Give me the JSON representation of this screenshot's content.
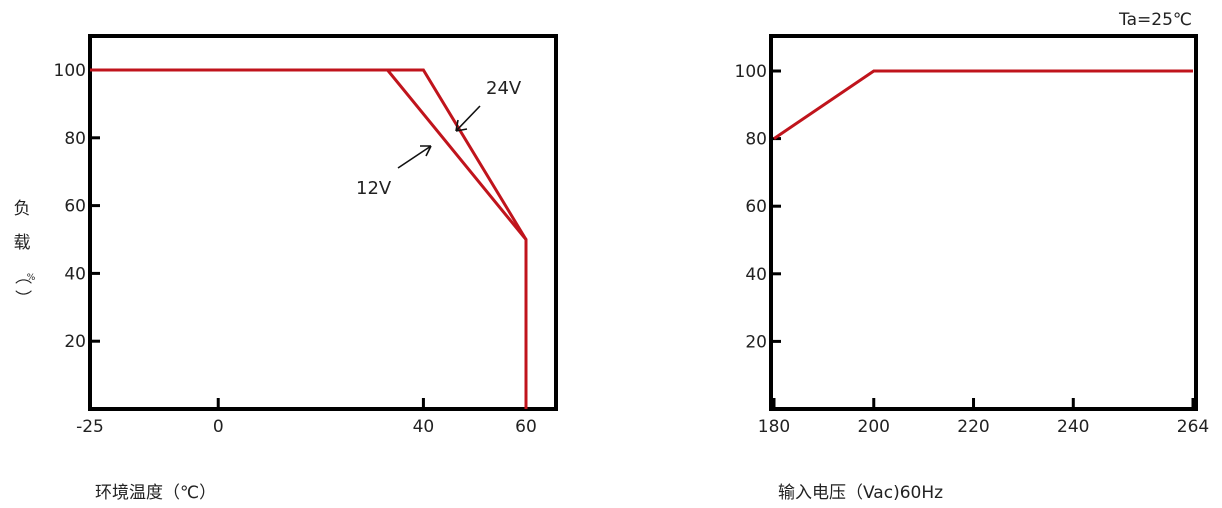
{
  "chart_data": [
    {
      "type": "line",
      "xlabel": "环境温度（℃）",
      "ylabel": "负载（%）",
      "xlim": [
        -25,
        60
      ],
      "ylim": [
        0,
        110
      ],
      "x_ticks": [
        -25,
        0,
        40,
        60
      ],
      "y_ticks": [
        20,
        40,
        60,
        80,
        100
      ],
      "grid": false,
      "series": [
        {
          "name": "24V",
          "x": [
            -25,
            40,
            60,
            60
          ],
          "y": [
            100,
            100,
            50,
            0
          ],
          "color": "#c0141c"
        },
        {
          "name": "12V",
          "x": [
            -25,
            33,
            60,
            60
          ],
          "y": [
            100,
            100,
            50,
            0
          ],
          "color": "#c0141c"
        }
      ]
    },
    {
      "type": "line",
      "title": "Ta=25℃",
      "xlabel": "输入电压（Vac)60Hz",
      "xlim": [
        180,
        264
      ],
      "ylim": [
        0,
        110
      ],
      "x_ticks": [
        180,
        200,
        220,
        240,
        264
      ],
      "y_ticks": [
        20,
        40,
        60,
        80,
        100
      ],
      "grid": false,
      "series": [
        {
          "x": [
            180,
            200,
            264
          ],
          "y": [
            80,
            100,
            100
          ],
          "color": "#c0141c"
        }
      ]
    }
  ]
}
